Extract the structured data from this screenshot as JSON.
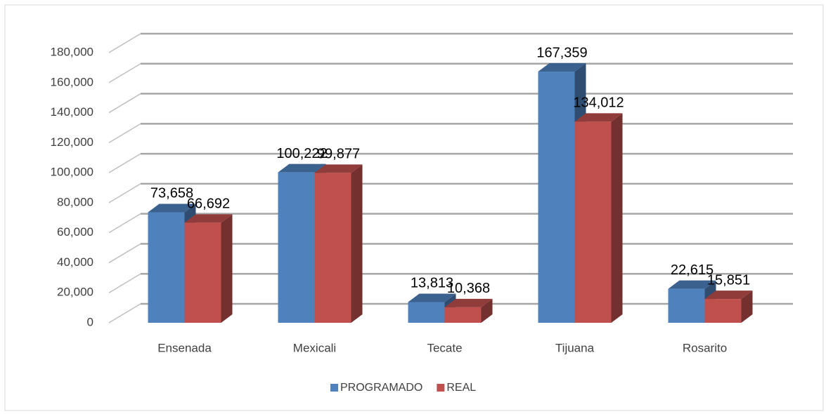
{
  "chart_data": {
    "type": "bar3d",
    "categories": [
      "Ensenada",
      "Mexicali",
      "Tecate",
      "Tijuana",
      "Rosarito"
    ],
    "series": [
      {
        "name": "PROGRAMADO",
        "color": "#4f81bd",
        "values": [
          73658,
          100222,
          13813,
          167359,
          22615
        ],
        "value_labels": [
          "73,658",
          "100,222",
          "13,813",
          "167,359",
          "22,615"
        ]
      },
      {
        "name": "REAL",
        "color": "#c0504d",
        "values": [
          66692,
          99877,
          10368,
          134012,
          15851
        ],
        "value_labels": [
          "66,692",
          "99,877",
          "10,368",
          "134,012",
          "15,851"
        ]
      }
    ],
    "ylim": [
      0,
      180000
    ],
    "yticks": [
      0,
      {
        "value": 20000,
        "label": "20,000"
      },
      {
        "value": 40000,
        "label": "40,000"
      },
      {
        "value": 60000,
        "label": "60,000"
      },
      {
        "value": 80000,
        "label": "80,000"
      },
      {
        "value": 100000,
        "label": "100,000"
      },
      {
        "value": 120000,
        "label": "120,000"
      },
      {
        "value": 140000,
        "label": "140,000"
      },
      {
        "value": 160000,
        "label": "160,000"
      },
      {
        "value": 180000,
        "label": "180,000"
      }
    ],
    "grid": true,
    "legend": "bottom"
  }
}
